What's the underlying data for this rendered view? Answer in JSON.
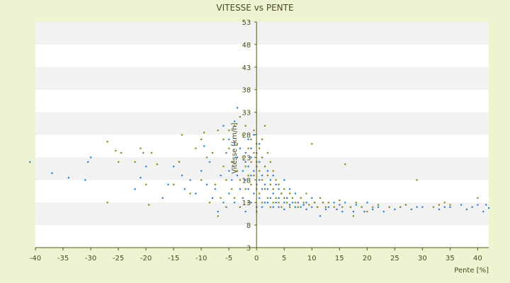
{
  "chart_data": {
    "type": "scatter",
    "title": "VITESSE vs PENTE",
    "xlabel": "Pente [%]",
    "ylabel": "Vitesse [km/h]",
    "xlim": [
      -40,
      42
    ],
    "ylim": [
      3,
      53
    ],
    "xticks": [
      "-40",
      "-35",
      "-30",
      "-25",
      "-20",
      "-15",
      "-10",
      "-5",
      "0",
      "5",
      "10",
      "15",
      "20",
      "25",
      "30",
      "35",
      "40"
    ],
    "yticks": [
      "3",
      "8",
      "13",
      "18",
      "23",
      "28",
      "33",
      "38",
      "43",
      "48",
      "53"
    ],
    "grid": "horizontal-bands",
    "legend": "none",
    "colors": {
      "background": "#eef3d2",
      "band_white": "#ffffff",
      "band_grey": "#f2f2f2",
      "axis": "#55551a",
      "text": "#4a4a20",
      "series_1": "#2b7fd0",
      "series_2": "#8a8a1a"
    },
    "series": [
      {
        "color": "#2b7fd0",
        "points": [
          [
            -41,
            22
          ],
          [
            -37,
            19.5
          ],
          [
            -34,
            18.5
          ],
          [
            -31,
            18
          ],
          [
            -30.5,
            22
          ],
          [
            -30,
            23
          ],
          [
            -22,
            16
          ],
          [
            -21,
            18.5
          ],
          [
            -20,
            21
          ],
          [
            -17,
            14
          ],
          [
            -16,
            17
          ],
          [
            -15,
            21
          ],
          [
            -14,
            22
          ],
          [
            -13.5,
            19
          ],
          [
            -13,
            16
          ],
          [
            -12,
            18
          ],
          [
            -11,
            15
          ],
          [
            -10,
            20
          ],
          [
            -9.5,
            25.5
          ],
          [
            -9,
            17
          ],
          [
            -8.5,
            22
          ],
          [
            -8,
            14
          ],
          [
            -7.5,
            16
          ],
          [
            -7,
            11
          ],
          [
            -6.5,
            19
          ],
          [
            -6,
            13
          ],
          [
            -6,
            30
          ],
          [
            -5.5,
            24
          ],
          [
            -5.5,
            12
          ],
          [
            -5,
            27
          ],
          [
            -5,
            20
          ],
          [
            -5,
            15
          ],
          [
            -4.5,
            22
          ],
          [
            -4.5,
            18
          ],
          [
            -4,
            26
          ],
          [
            -4,
            13
          ],
          [
            -4,
            31
          ],
          [
            -3.5,
            19
          ],
          [
            -3.5,
            23
          ],
          [
            -3.5,
            34
          ],
          [
            -3,
            25
          ],
          [
            -3,
            16
          ],
          [
            -3,
            12
          ],
          [
            -2.5,
            28
          ],
          [
            -2.5,
            20
          ],
          [
            -2.5,
            14
          ],
          [
            -2,
            24
          ],
          [
            -2,
            22
          ],
          [
            -2,
            18
          ],
          [
            -2,
            11
          ],
          [
            -1.5,
            27
          ],
          [
            -1.5,
            21
          ],
          [
            -1.5,
            16
          ],
          [
            -1,
            25
          ],
          [
            -1,
            23
          ],
          [
            -1,
            19
          ],
          [
            -1,
            13
          ],
          [
            -0.5,
            28
          ],
          [
            -0.5,
            20
          ],
          [
            -0.5,
            15
          ],
          [
            0,
            24
          ],
          [
            0,
            21
          ],
          [
            0,
            17
          ],
          [
            0,
            12
          ],
          [
            0.5,
            26
          ],
          [
            0.5,
            22
          ],
          [
            0.5,
            18
          ],
          [
            0.5,
            14
          ],
          [
            1,
            23
          ],
          [
            1,
            19
          ],
          [
            1,
            16
          ],
          [
            1,
            12
          ],
          [
            1.5,
            21
          ],
          [
            1.5,
            17
          ],
          [
            1.5,
            13
          ],
          [
            2,
            20
          ],
          [
            2,
            16
          ],
          [
            2,
            13
          ],
          [
            2.5,
            18
          ],
          [
            2.5,
            14
          ],
          [
            3,
            19
          ],
          [
            3,
            15
          ],
          [
            3,
            12
          ],
          [
            3.5,
            17
          ],
          [
            3.5,
            13
          ],
          [
            4,
            16
          ],
          [
            4,
            14
          ],
          [
            4,
            12
          ],
          [
            4.5,
            15
          ],
          [
            5,
            18
          ],
          [
            5,
            13
          ],
          [
            5,
            11.5
          ],
          [
            5.5,
            14
          ],
          [
            6,
            16
          ],
          [
            6,
            12.5
          ],
          [
            6.5,
            13
          ],
          [
            7,
            15
          ],
          [
            7,
            12
          ],
          [
            7.5,
            13
          ],
          [
            8,
            14
          ],
          [
            8,
            12
          ],
          [
            8.5,
            12.5
          ],
          [
            9,
            13
          ],
          [
            9,
            11.5
          ],
          [
            10,
            14
          ],
          [
            10,
            12
          ],
          [
            10.5,
            13
          ],
          [
            11,
            12
          ],
          [
            11.5,
            10
          ],
          [
            12,
            13
          ],
          [
            12.5,
            11.5
          ],
          [
            13,
            12
          ],
          [
            14,
            13
          ],
          [
            14.5,
            11.5
          ],
          [
            15,
            12.5
          ],
          [
            15.5,
            11
          ],
          [
            16,
            13
          ],
          [
            17,
            12
          ],
          [
            17.5,
            11
          ],
          [
            18,
            12.5
          ],
          [
            19,
            12
          ],
          [
            19.5,
            11
          ],
          [
            20,
            13
          ],
          [
            21,
            11.5
          ],
          [
            22,
            12
          ],
          [
            23,
            11
          ],
          [
            24,
            12
          ],
          [
            25,
            11.5
          ],
          [
            26,
            12
          ],
          [
            27,
            12.5
          ],
          [
            28,
            11.5
          ],
          [
            29,
            12
          ],
          [
            30,
            12
          ],
          [
            33,
            11.5
          ],
          [
            34,
            12
          ],
          [
            35,
            12
          ],
          [
            37,
            12.5
          ],
          [
            38,
            11.5
          ],
          [
            39,
            12
          ],
          [
            40,
            12.5
          ],
          [
            41,
            11
          ],
          [
            41.5,
            12.5
          ],
          [
            42,
            11.8
          ]
        ]
      },
      {
        "color": "#8a8a1a",
        "points": [
          [
            -27,
            26.5
          ],
          [
            -27,
            13
          ],
          [
            -25.5,
            24.5
          ],
          [
            -25,
            22
          ],
          [
            -24.5,
            24
          ],
          [
            -22,
            22
          ],
          [
            -21,
            25
          ],
          [
            -20.5,
            24
          ],
          [
            -20,
            17
          ],
          [
            -19.5,
            12.5
          ],
          [
            -19,
            24
          ],
          [
            -18,
            21.5
          ],
          [
            -15,
            17
          ],
          [
            -14,
            22
          ],
          [
            -13.5,
            28
          ],
          [
            -12,
            15
          ],
          [
            -11,
            25
          ],
          [
            -10,
            18
          ],
          [
            -10,
            27
          ],
          [
            -9.5,
            28.5
          ],
          [
            -9,
            23
          ],
          [
            -8.5,
            13
          ],
          [
            -8,
            24
          ],
          [
            -7.5,
            17
          ],
          [
            -7,
            29
          ],
          [
            -7,
            10
          ],
          [
            -6.5,
            14
          ],
          [
            -6,
            21
          ],
          [
            -6,
            27
          ],
          [
            -5.5,
            18
          ],
          [
            -5.5,
            12
          ],
          [
            -5,
            25
          ],
          [
            -5,
            29
          ],
          [
            -4.5,
            16
          ],
          [
            -4.5,
            22
          ],
          [
            -4,
            30
          ],
          [
            -4,
            14
          ],
          [
            -3.5,
            20
          ],
          [
            -3.5,
            26
          ],
          [
            -3,
            32
          ],
          [
            -3,
            18
          ],
          [
            -3,
            12
          ],
          [
            -2.5,
            23
          ],
          [
            -2.5,
            28
          ],
          [
            -2,
            16
          ],
          [
            -2,
            21
          ],
          [
            -2,
            30
          ],
          [
            -1.5,
            19
          ],
          [
            -1.5,
            25
          ],
          [
            -1.5,
            13
          ],
          [
            -1,
            27
          ],
          [
            -1,
            22
          ],
          [
            -1,
            17
          ],
          [
            -0.5,
            24
          ],
          [
            -0.5,
            19
          ],
          [
            -0.5,
            29
          ],
          [
            0,
            26
          ],
          [
            0,
            22
          ],
          [
            0,
            16
          ],
          [
            0,
            11
          ],
          [
            0.5,
            25
          ],
          [
            0.5,
            20
          ],
          [
            0.5,
            15
          ],
          [
            1,
            27
          ],
          [
            1,
            23
          ],
          [
            1,
            18
          ],
          [
            1,
            13
          ],
          [
            1.5,
            30
          ],
          [
            1.5,
            21
          ],
          [
            1.5,
            16
          ],
          [
            2,
            24
          ],
          [
            2,
            19
          ],
          [
            2,
            14
          ],
          [
            2.5,
            22
          ],
          [
            2.5,
            17
          ],
          [
            2.5,
            12
          ],
          [
            3,
            20
          ],
          [
            3,
            16
          ],
          [
            3,
            13
          ],
          [
            3.5,
            18
          ],
          [
            3.5,
            14
          ],
          [
            4,
            17
          ],
          [
            4,
            13
          ],
          [
            4.5,
            15
          ],
          [
            4.5,
            12
          ],
          [
            5,
            16
          ],
          [
            5,
            14
          ],
          [
            5.5,
            13
          ],
          [
            6,
            15
          ],
          [
            6,
            12
          ],
          [
            6.5,
            14
          ],
          [
            7,
            13
          ],
          [
            7.5,
            12
          ],
          [
            8,
            14
          ],
          [
            8.5,
            13
          ],
          [
            9,
            15
          ],
          [
            9.5,
            12.5
          ],
          [
            10,
            26
          ],
          [
            10.5,
            13
          ],
          [
            11,
            12
          ],
          [
            11.5,
            14
          ],
          [
            12,
            13
          ],
          [
            12.5,
            12
          ],
          [
            13,
            13
          ],
          [
            14,
            12
          ],
          [
            15,
            13.5
          ],
          [
            15.5,
            12
          ],
          [
            16,
            21.5
          ],
          [
            17,
            12
          ],
          [
            17.5,
            10
          ],
          [
            18,
            13
          ],
          [
            19,
            12
          ],
          [
            20,
            11
          ],
          [
            21,
            12
          ],
          [
            22,
            12.5
          ],
          [
            24,
            12
          ],
          [
            26,
            12
          ],
          [
            27,
            12.5
          ],
          [
            29,
            18
          ],
          [
            32,
            12
          ],
          [
            33,
            12.5
          ],
          [
            34,
            13
          ],
          [
            35,
            12.5
          ],
          [
            40,
            14
          ]
        ]
      }
    ]
  }
}
